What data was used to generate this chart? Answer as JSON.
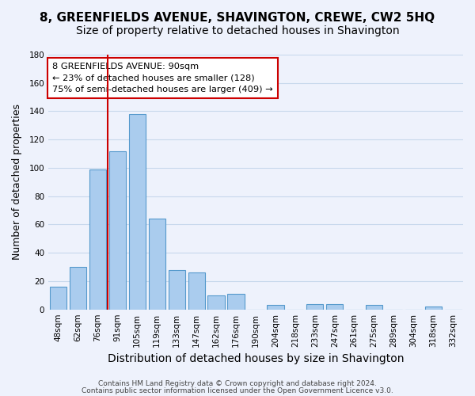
{
  "title": "8, GREENFIELDS AVENUE, SHAVINGTON, CREWE, CW2 5HQ",
  "subtitle": "Size of property relative to detached houses in Shavington",
  "xlabel": "Distribution of detached houses by size in Shavington",
  "ylabel": "Number of detached properties",
  "bar_labels": [
    "48sqm",
    "62sqm",
    "76sqm",
    "91sqm",
    "105sqm",
    "119sqm",
    "133sqm",
    "147sqm",
    "162sqm",
    "176sqm",
    "190sqm",
    "204sqm",
    "218sqm",
    "233sqm",
    "247sqm",
    "261sqm",
    "275sqm",
    "289sqm",
    "304sqm",
    "318sqm",
    "332sqm"
  ],
  "bar_values": [
    16,
    30,
    99,
    112,
    138,
    64,
    28,
    26,
    10,
    11,
    0,
    3,
    0,
    4,
    4,
    0,
    3,
    0,
    0,
    2,
    0
  ],
  "bar_color": "#aaccee",
  "bar_edge_color": "#5599cc",
  "vline_x": 2.5,
  "vline_color": "#cc0000",
  "ylim": [
    0,
    180
  ],
  "yticks": [
    0,
    20,
    40,
    60,
    80,
    100,
    120,
    140,
    160,
    180
  ],
  "annotation_title": "8 GREENFIELDS AVENUE: 90sqm",
  "annotation_line1": "← 23% of detached houses are smaller (128)",
  "annotation_line2": "75% of semi-detached houses are larger (409) →",
  "footer1": "Contains HM Land Registry data © Crown copyright and database right 2024.",
  "footer2": "Contains public sector information licensed under the Open Government Licence v3.0.",
  "bg_color": "#eef2fc",
  "grid_color": "#c8d8ec",
  "title_fontsize": 11,
  "subtitle_fontsize": 10,
  "xlabel_fontsize": 10,
  "ylabel_fontsize": 9,
  "tick_fontsize": 7.5,
  "annotation_box_color": "#ffffff",
  "annotation_box_edge": "#cc0000"
}
